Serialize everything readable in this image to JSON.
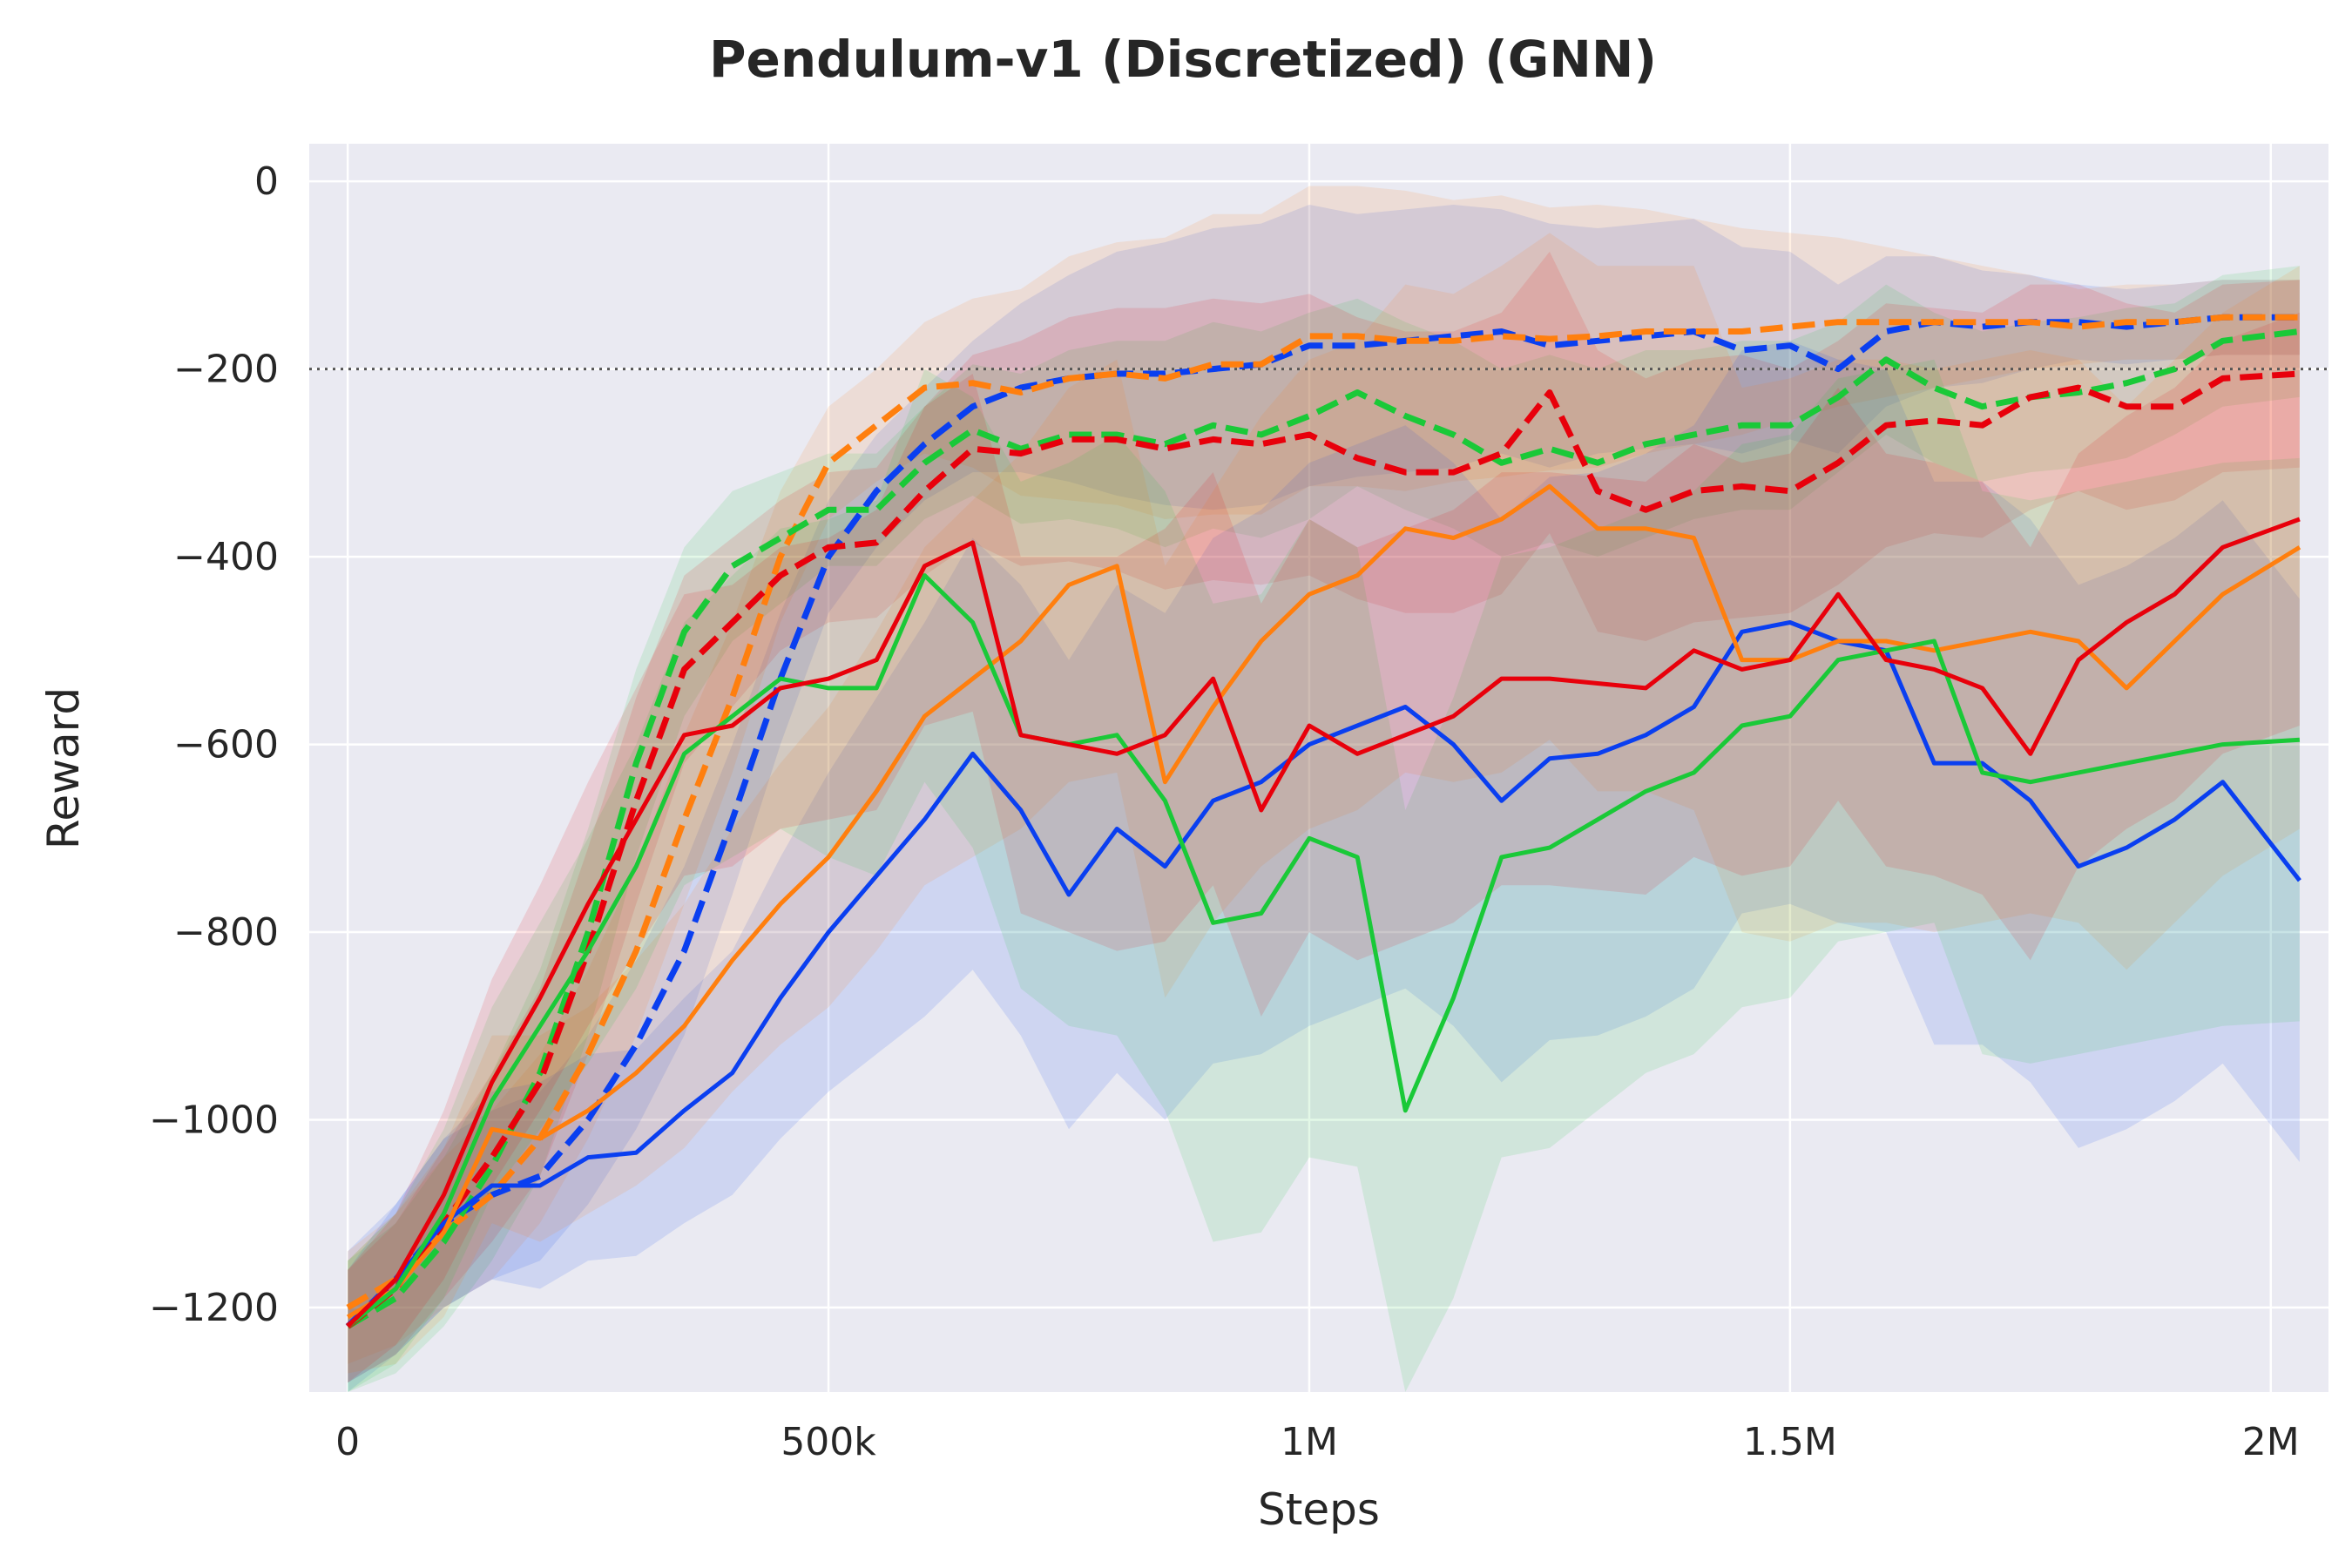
{
  "chart_data": {
    "type": "line",
    "title": "Pendulum-v1 (Discretized) (GNN)",
    "xlabel": "Steps",
    "ylabel": "Reward",
    "xlim": [
      -40000,
      2060000
    ],
    "ylim": [
      -1290,
      40
    ],
    "grid": true,
    "background": "#eaeaf2",
    "x_ticks": [
      {
        "value": 0,
        "label": "0"
      },
      {
        "value": 500000,
        "label": "500k"
      },
      {
        "value": 1000000,
        "label": "1M"
      },
      {
        "value": 1500000,
        "label": "1.5M"
      },
      {
        "value": 2000000,
        "label": "2M"
      }
    ],
    "y_ticks": [
      {
        "value": 0,
        "label": "0"
      },
      {
        "value": -200,
        "label": "−200"
      },
      {
        "value": -400,
        "label": "−400"
      },
      {
        "value": -600,
        "label": "−600"
      },
      {
        "value": -800,
        "label": "−800"
      },
      {
        "value": -1000,
        "label": "−1000"
      },
      {
        "value": -1200,
        "label": "−1200"
      }
    ],
    "reference_line": {
      "y": -200,
      "style": "dotted",
      "color": "#555555"
    },
    "series": [
      {
        "color": "#0a3ff0",
        "dash": "dashed",
        "x": [
          0,
          50000,
          100000,
          150000,
          200000,
          250000,
          300000,
          350000,
          400000,
          450000,
          500000,
          550000,
          600000,
          650000,
          700000,
          750000,
          800000,
          850000,
          900000,
          950000,
          1000000,
          1050000,
          1100000,
          1150000,
          1200000,
          1250000,
          1300000,
          1350000,
          1400000,
          1450000,
          1500000,
          1550000,
          1600000,
          1650000,
          1700000,
          1750000,
          1800000,
          1850000,
          1900000,
          1950000,
          2030000
        ],
        "y": [
          -1220,
          -1170,
          -1110,
          -1080,
          -1060,
          -1000,
          -920,
          -820,
          -680,
          -530,
          -400,
          -330,
          -280,
          -240,
          -220,
          -210,
          -205,
          -205,
          -200,
          -195,
          -175,
          -175,
          -170,
          -165,
          -160,
          -175,
          -170,
          -165,
          -160,
          -180,
          -175,
          -200,
          -160,
          -150,
          -155,
          -150,
          -150,
          -155,
          -150,
          -145,
          -145
        ],
        "band": [
          80,
          80,
          90,
          90,
          90,
          90,
          90,
          90,
          80,
          70,
          60,
          60,
          60,
          70,
          90,
          110,
          130,
          140,
          150,
          150,
          150,
          140,
          140,
          140,
          130,
          130,
          120,
          120,
          120,
          110,
          100,
          90,
          80,
          70,
          60,
          50,
          40,
          40,
          40,
          40,
          40
        ]
      },
      {
        "color": "#ff7f0e",
        "dash": "dashed",
        "x": [
          0,
          50000,
          100000,
          150000,
          200000,
          250000,
          300000,
          350000,
          400000,
          450000,
          500000,
          550000,
          600000,
          650000,
          700000,
          750000,
          800000,
          850000,
          900000,
          950000,
          1000000,
          1050000,
          1100000,
          1150000,
          1200000,
          1250000,
          1300000,
          1350000,
          1400000,
          1450000,
          1500000,
          1550000,
          1600000,
          1650000,
          1700000,
          1750000,
          1800000,
          1850000,
          1900000,
          1950000,
          2030000
        ],
        "y": [
          -1200,
          -1170,
          -1120,
          -1080,
          -1020,
          -930,
          -820,
          -680,
          -550,
          -400,
          -300,
          -260,
          -220,
          -215,
          -225,
          -210,
          -205,
          -210,
          -195,
          -195,
          -165,
          -165,
          -170,
          -170,
          -165,
          -168,
          -165,
          -160,
          -160,
          -160,
          -155,
          -150,
          -150,
          -150,
          -150,
          -150,
          -155,
          -150,
          -150,
          -145,
          -145
        ],
        "band": [
          60,
          70,
          80,
          90,
          90,
          90,
          90,
          90,
          80,
          70,
          60,
          60,
          70,
          90,
          110,
          130,
          140,
          150,
          160,
          160,
          160,
          160,
          160,
          150,
          150,
          140,
          140,
          130,
          120,
          110,
          100,
          90,
          80,
          70,
          60,
          50,
          40,
          40,
          40,
          40,
          40
        ]
      },
      {
        "color": "#1ac938",
        "dash": "dashed",
        "x": [
          0,
          50000,
          100000,
          150000,
          200000,
          250000,
          300000,
          350000,
          400000,
          450000,
          500000,
          550000,
          600000,
          650000,
          700000,
          750000,
          800000,
          850000,
          900000,
          950000,
          1000000,
          1050000,
          1100000,
          1150000,
          1200000,
          1250000,
          1300000,
          1350000,
          1400000,
          1450000,
          1500000,
          1550000,
          1600000,
          1650000,
          1700000,
          1750000,
          1800000,
          1850000,
          1900000,
          1950000,
          2030000
        ],
        "y": [
          -1220,
          -1190,
          -1130,
          -1050,
          -950,
          -800,
          -620,
          -480,
          -410,
          -380,
          -350,
          -350,
          -300,
          -265,
          -285,
          -270,
          -270,
          -280,
          -260,
          -270,
          -250,
          -225,
          -250,
          -270,
          -300,
          -285,
          -300,
          -280,
          -270,
          -260,
          -260,
          -230,
          -190,
          -220,
          -240,
          -230,
          -225,
          -215,
          -200,
          -170,
          -160
        ],
        "band": [
          70,
          80,
          90,
          100,
          110,
          110,
          100,
          90,
          80,
          70,
          60,
          60,
          60,
          70,
          80,
          90,
          100,
          110,
          110,
          110,
          110,
          100,
          100,
          100,
          100,
          100,
          100,
          100,
          90,
          90,
          90,
          80,
          80,
          80,
          80,
          80,
          80,
          80,
          70,
          70,
          70
        ]
      },
      {
        "color": "#e8000b",
        "dash": "dashed",
        "x": [
          0,
          50000,
          100000,
          150000,
          200000,
          250000,
          300000,
          350000,
          400000,
          450000,
          500000,
          550000,
          600000,
          650000,
          700000,
          750000,
          800000,
          850000,
          900000,
          950000,
          1000000,
          1050000,
          1100000,
          1150000,
          1200000,
          1250000,
          1300000,
          1350000,
          1400000,
          1450000,
          1500000,
          1550000,
          1600000,
          1650000,
          1700000,
          1750000,
          1800000,
          1850000,
          1900000,
          1950000,
          2030000
        ],
        "y": [
          -1220,
          -1180,
          -1110,
          -1040,
          -960,
          -820,
          -660,
          -520,
          -470,
          -420,
          -390,
          -385,
          -330,
          -285,
          -290,
          -275,
          -275,
          -285,
          -275,
          -280,
          -270,
          -295,
          -310,
          -310,
          -290,
          -225,
          -330,
          -350,
          -330,
          -325,
          -330,
          -300,
          -260,
          -255,
          -260,
          -230,
          -220,
          -240,
          -240,
          -210,
          -205
        ],
        "band": [
          60,
          70,
          80,
          90,
          100,
          110,
          110,
          100,
          90,
          80,
          80,
          80,
          90,
          100,
          120,
          130,
          140,
          150,
          150,
          150,
          150,
          150,
          150,
          150,
          150,
          150,
          150,
          140,
          140,
          140,
          130,
          130,
          130,
          120,
          120,
          120,
          110,
          110,
          100,
          100,
          100
        ]
      },
      {
        "color": "#0a3ff0",
        "dash": "solid",
        "x": [
          0,
          50000,
          100000,
          150000,
          200000,
          250000,
          300000,
          350000,
          400000,
          450000,
          500000,
          550000,
          600000,
          650000,
          700000,
          750000,
          800000,
          850000,
          900000,
          950000,
          1000000,
          1050000,
          1100000,
          1150000,
          1200000,
          1250000,
          1300000,
          1350000,
          1400000,
          1450000,
          1500000,
          1550000,
          1600000,
          1650000,
          1700000,
          1750000,
          1800000,
          1850000,
          1900000,
          1950000,
          2030000
        ],
        "y": [
          -1220,
          -1170,
          -1110,
          -1070,
          -1070,
          -1040,
          -1035,
          -990,
          -950,
          -870,
          -800,
          -740,
          -680,
          -610,
          -670,
          -760,
          -690,
          -730,
          -660,
          -640,
          -600,
          -580,
          -560,
          -600,
          -660,
          -615,
          -610,
          -590,
          -560,
          -480,
          -470,
          -490,
          -500,
          -620,
          -620,
          -660,
          -730,
          -710,
          -680,
          -640,
          -745
        ],
        "band": [
          60,
          80,
          90,
          100,
          110,
          110,
          110,
          120,
          130,
          150,
          170,
          190,
          210,
          230,
          240,
          250,
          260,
          270,
          280,
          290,
          300,
          300,
          300,
          300,
          300,
          300,
          300,
          300,
          300,
          300,
          300,
          300,
          300,
          300,
          300,
          300,
          300,
          300,
          300,
          300,
          300
        ]
      },
      {
        "color": "#ff7f0e",
        "dash": "solid",
        "x": [
          0,
          50000,
          100000,
          150000,
          200000,
          250000,
          300000,
          350000,
          400000,
          450000,
          500000,
          550000,
          600000,
          650000,
          700000,
          750000,
          800000,
          850000,
          900000,
          950000,
          1000000,
          1050000,
          1100000,
          1150000,
          1200000,
          1250000,
          1300000,
          1350000,
          1400000,
          1450000,
          1500000,
          1550000,
          1600000,
          1650000,
          1700000,
          1750000,
          1800000,
          1850000,
          1900000,
          1950000,
          2030000
        ],
        "y": [
          -1210,
          -1180,
          -1120,
          -1010,
          -1020,
          -990,
          -950,
          -900,
          -830,
          -770,
          -720,
          -650,
          -570,
          -530,
          -490,
          -430,
          -410,
          -640,
          -560,
          -490,
          -440,
          -420,
          -370,
          -380,
          -360,
          -325,
          -370,
          -370,
          -380,
          -510,
          -510,
          -490,
          -490,
          -500,
          -490,
          -480,
          -490,
          -540,
          -490,
          -440,
          -390
        ],
        "band": [
          60,
          80,
          90,
          100,
          110,
          110,
          120,
          130,
          140,
          150,
          160,
          170,
          180,
          190,
          200,
          210,
          220,
          230,
          230,
          240,
          250,
          250,
          260,
          260,
          270,
          270,
          280,
          280,
          290,
          290,
          300,
          300,
          300,
          300,
          300,
          300,
          300,
          300,
          300,
          300,
          300
        ]
      },
      {
        "color": "#1ac938",
        "dash": "solid",
        "x": [
          0,
          50000,
          100000,
          150000,
          200000,
          250000,
          300000,
          350000,
          400000,
          450000,
          500000,
          550000,
          600000,
          650000,
          700000,
          750000,
          800000,
          850000,
          900000,
          950000,
          1000000,
          1050000,
          1100000,
          1150000,
          1200000,
          1250000,
          1300000,
          1350000,
          1400000,
          1450000,
          1500000,
          1550000,
          1600000,
          1650000,
          1700000,
          1750000,
          1800000,
          1850000,
          1900000,
          1950000,
          2030000
        ],
        "y": [
          -1220,
          -1180,
          -1100,
          -980,
          -900,
          -820,
          -730,
          -610,
          -570,
          -530,
          -540,
          -540,
          -420,
          -470,
          -590,
          -600,
          -590,
          -660,
          -790,
          -780,
          -700,
          -720,
          -990,
          -870,
          -720,
          -710,
          -680,
          -650,
          -630,
          -580,
          -570,
          -510,
          -500,
          -490,
          -630,
          -640,
          -630,
          -620,
          -610,
          -600,
          -595
        ],
        "band": [
          70,
          80,
          90,
          100,
          110,
          120,
          130,
          140,
          150,
          160,
          180,
          200,
          220,
          240,
          270,
          300,
          320,
          330,
          340,
          340,
          340,
          330,
          320,
          320,
          320,
          320,
          310,
          300,
          300,
          300,
          300,
          300,
          300,
          300,
          300,
          300,
          300,
          300,
          300,
          300,
          300
        ]
      },
      {
        "color": "#e8000b",
        "dash": "solid",
        "x": [
          0,
          50000,
          100000,
          150000,
          200000,
          250000,
          300000,
          350000,
          400000,
          450000,
          500000,
          550000,
          600000,
          650000,
          700000,
          750000,
          800000,
          850000,
          900000,
          950000,
          1000000,
          1050000,
          1100000,
          1150000,
          1200000,
          1250000,
          1300000,
          1350000,
          1400000,
          1450000,
          1500000,
          1550000,
          1600000,
          1650000,
          1700000,
          1750000,
          1800000,
          1850000,
          1900000,
          1950000,
          2030000
        ],
        "y": [
          -1220,
          -1170,
          -1080,
          -960,
          -870,
          -770,
          -680,
          -590,
          -580,
          -540,
          -530,
          -510,
          -410,
          -385,
          -590,
          -600,
          -610,
          -590,
          -530,
          -670,
          -580,
          -610,
          -590,
          -570,
          -530,
          -530,
          -535,
          -540,
          -500,
          -520,
          -510,
          -440,
          -510,
          -520,
          -540,
          -610,
          -510,
          -470,
          -440,
          -390,
          -360
        ],
        "band": [
          60,
          70,
          90,
          110,
          120,
          130,
          140,
          150,
          150,
          150,
          150,
          160,
          170,
          180,
          190,
          200,
          210,
          220,
          220,
          220,
          220,
          220,
          220,
          220,
          220,
          220,
          220,
          220,
          220,
          220,
          220,
          220,
          220,
          220,
          220,
          220,
          220,
          220,
          220,
          220,
          220
        ]
      }
    ]
  }
}
